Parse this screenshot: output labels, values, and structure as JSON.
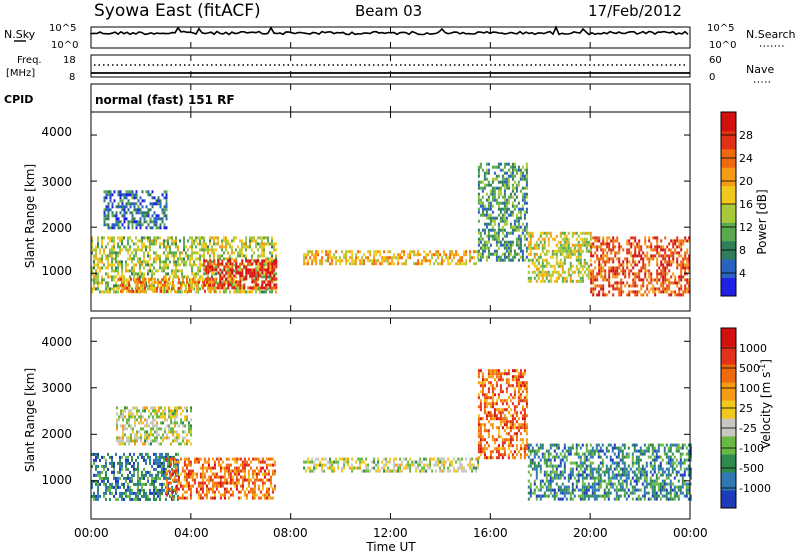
{
  "header": {
    "station": "Syowa East (fitACF)",
    "beam": "Beam 03",
    "date": "17/Feb/2012"
  },
  "top_panels": {
    "nsky_label": "N.Sky",
    "nsearch_label": "N.Search",
    "noise_ticks": [
      "10^5",
      "10^0"
    ],
    "freq_label_line1": "Freq.",
    "freq_label_line2": "[MHz]",
    "freq_ticks": [
      "18",
      "8"
    ],
    "nave_label": "Nave",
    "nave_ticks": [
      "60",
      "0"
    ],
    "cpid_label": "CPID",
    "cpid_value": "normal (fast) 151 RF"
  },
  "colors": {
    "power_scale": [
      "#1f1fe6",
      "#2a63bf",
      "#2f7d5a",
      "#5aa850",
      "#a8c83c",
      "#f0c81e",
      "#f59b14",
      "#ef6a0f",
      "#e03214",
      "#d40f0f"
    ],
    "velocity_scale": [
      "#1f3cb8",
      "#2e78b4",
      "#2f8a4e",
      "#6ab844",
      "#c8c8c0",
      "#f0c81e",
      "#f59b14",
      "#ef6a0f",
      "#e2321a",
      "#d40f0f"
    ]
  },
  "chart_data": [
    {
      "type": "heatmap",
      "name": "power",
      "xlabel": "Time UT",
      "ylabel": "Slant Range [km]",
      "x_ticks": [
        "00:00",
        "04:00",
        "08:00",
        "12:00",
        "16:00",
        "20:00",
        "00:00"
      ],
      "xlim_hours": [
        0,
        24
      ],
      "ylim_km": [
        180,
        4500
      ],
      "y_ticks": [
        1000,
        2000,
        3000,
        4000
      ],
      "colorbar": {
        "label": "Power [dB]",
        "range": [
          0,
          32
        ],
        "ticks": [
          4,
          8,
          12,
          16,
          20,
          24,
          28
        ]
      },
      "echo_regions": [
        {
          "t_start": 0.0,
          "t_end": 7.4,
          "r_low": 600,
          "r_high": 1800,
          "level": 0.45
        },
        {
          "t_start": 4.5,
          "t_end": 7.4,
          "r_low": 700,
          "r_high": 1300,
          "level": 0.9
        },
        {
          "t_start": 1.0,
          "t_end": 5.0,
          "r_low": 600,
          "r_high": 900,
          "level": 0.7
        },
        {
          "t_start": 8.5,
          "t_end": 15.5,
          "r_low": 1200,
          "r_high": 1500,
          "level": 0.6
        },
        {
          "t_start": 15.5,
          "t_end": 17.5,
          "r_low": 1300,
          "r_high": 3400,
          "level": 0.3
        },
        {
          "t_start": 17.5,
          "t_end": 20.0,
          "r_low": 800,
          "r_high": 1900,
          "level": 0.5
        },
        {
          "t_start": 20.0,
          "t_end": 24.0,
          "r_low": 500,
          "r_high": 1800,
          "level": 0.8
        },
        {
          "t_start": 0.5,
          "t_end": 3.0,
          "r_low": 2000,
          "r_high": 2800,
          "level": 0.2
        }
      ]
    },
    {
      "type": "heatmap",
      "name": "velocity",
      "xlabel": "Time UT",
      "ylabel": "Slant Range [km]",
      "x_ticks": [
        "00:00",
        "04:00",
        "08:00",
        "12:00",
        "16:00",
        "20:00",
        "00:00"
      ],
      "xlim_hours": [
        0,
        24
      ],
      "ylim_km": [
        180,
        4500
      ],
      "y_ticks": [
        1000,
        2000,
        3000,
        4000
      ],
      "colorbar": {
        "label": "Velocity [m s",
        "label_sup": "-1",
        "label_end": "]",
        "ticks": [
          "1000",
          "500",
          "100",
          "25",
          "-25",
          "-100",
          "-500",
          "-1000"
        ]
      },
      "echo_regions": [
        {
          "t_start": 0.0,
          "t_end": 3.5,
          "r_low": 600,
          "r_high": 1600,
          "level": 0.2
        },
        {
          "t_start": 3.0,
          "t_end": 7.4,
          "r_low": 600,
          "r_high": 1500,
          "level": 0.75
        },
        {
          "t_start": 8.5,
          "t_end": 15.5,
          "r_low": 1200,
          "r_high": 1500,
          "level": 0.45
        },
        {
          "t_start": 15.5,
          "t_end": 17.5,
          "r_low": 1500,
          "r_high": 3400,
          "level": 0.75
        },
        {
          "t_start": 17.5,
          "t_end": 24.0,
          "r_low": 600,
          "r_high": 1800,
          "level": 0.22
        },
        {
          "t_start": 1.0,
          "t_end": 4.0,
          "r_low": 1800,
          "r_high": 2600,
          "level": 0.45
        }
      ]
    }
  ]
}
